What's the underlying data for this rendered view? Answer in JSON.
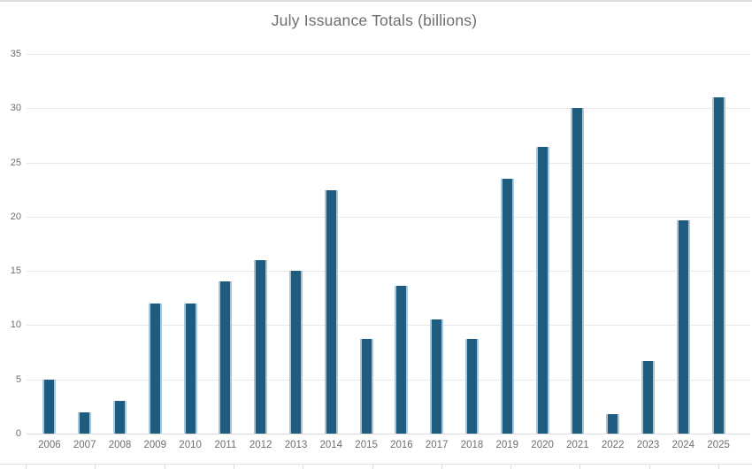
{
  "chart_data": {
    "type": "bar",
    "title": "July Issuance Totals (billions)",
    "categories": [
      "2006",
      "2007",
      "2008",
      "2009",
      "2010",
      "2011",
      "2012",
      "2013",
      "2014",
      "2015",
      "2016",
      "2017",
      "2018",
      "2019",
      "2020",
      "2021",
      "2022",
      "2023",
      "2024",
      "2025"
    ],
    "values": [
      5,
      2,
      3,
      12,
      12,
      14,
      16,
      15,
      22.4,
      8.7,
      13.6,
      10.5,
      8.7,
      23.5,
      26.4,
      30,
      1.8,
      6.7,
      19.7,
      31
    ],
    "xlabel": "",
    "ylabel": "",
    "ylim": [
      0,
      35
    ],
    "yticks": [
      0,
      5,
      10,
      15,
      20,
      25,
      30,
      35
    ],
    "grid": "horizontal",
    "legend": "none",
    "bar_color": "#1f5c7f",
    "bar_edge_color": "#a9c7d8",
    "gridline_color": "#e8e8e8",
    "axis_text_color": "#6e6e6e",
    "title_color": "#6e6e6e"
  }
}
